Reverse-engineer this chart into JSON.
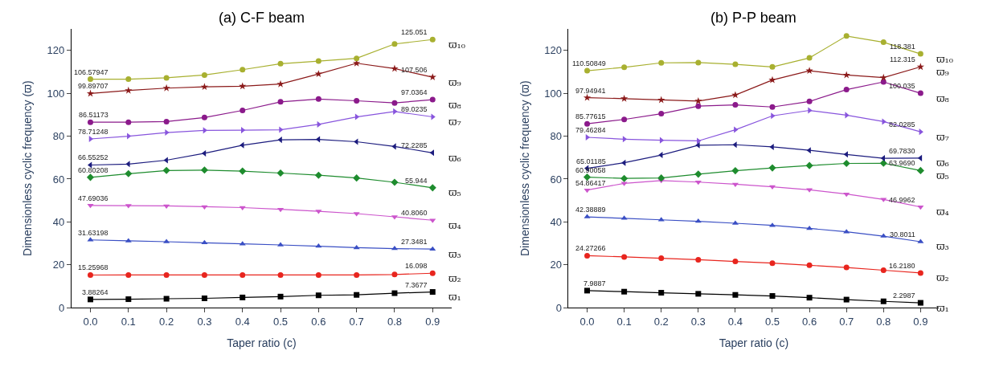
{
  "chart_data": [
    {
      "type": "line",
      "title": "(a) C-F beam",
      "xlabel": "Taper ratio (c)",
      "ylabel": "Dimensionless cyclic frequency (ϖ)",
      "x": [
        0.0,
        0.1,
        0.2,
        0.3,
        0.4,
        0.5,
        0.6,
        0.7,
        0.8,
        0.9
      ],
      "xlim": [
        -0.05,
        0.95
      ],
      "xticks": [
        {
          "value": 0,
          "label": "0.0"
        },
        0.1,
        0.2,
        0.3,
        0.4,
        0.5,
        0.6,
        0.7,
        0.8,
        0.9
      ],
      "ylim": [
        0,
        130
      ],
      "yticks": [
        0,
        20,
        40,
        60,
        80,
        100,
        120
      ],
      "legend": false,
      "series": [
        {
          "name": "ϖ₁",
          "color": "#000000",
          "marker": "square",
          "values": [
            3.88264,
            4.0,
            4.2,
            4.4,
            4.8,
            5.2,
            5.8,
            6.0,
            6.8,
            7.3677
          ],
          "value_labels": [
            "3.88264",
            null,
            null,
            null,
            null,
            null,
            null,
            null,
            null,
            "7.3677"
          ]
        },
        {
          "name": "ϖ₂",
          "color": "#e8251e",
          "marker": "circle",
          "values": [
            15.25968,
            15.3,
            15.3,
            15.3,
            15.3,
            15.3,
            15.3,
            15.3,
            15.5,
            16.098
          ],
          "value_labels": [
            "15.25968",
            null,
            null,
            null,
            null,
            null,
            null,
            null,
            null,
            "16.098"
          ]
        },
        {
          "name": "ϖ₃",
          "color": "#3a4fc4",
          "marker": "triangle",
          "values": [
            31.63198,
            31.2,
            30.8,
            30.3,
            29.8,
            29.3,
            28.7,
            28.0,
            27.6,
            27.3481
          ],
          "value_labels": [
            "31.63198",
            null,
            null,
            null,
            null,
            null,
            null,
            null,
            null,
            "27.3481"
          ]
        },
        {
          "name": "ϖ₄",
          "color": "#cc55cc",
          "marker": "triangle-down",
          "values": [
            47.69036,
            47.6,
            47.5,
            47.1,
            46.7,
            45.9,
            45.0,
            43.9,
            42.4,
            40.806
          ],
          "value_labels": [
            "47.69036",
            null,
            null,
            null,
            null,
            null,
            null,
            null,
            null,
            "40.8060"
          ]
        },
        {
          "name": "ϖ₅",
          "color": "#1e8c2e",
          "marker": "diamond",
          "values": [
            60.80208,
            62.5,
            64.0,
            64.2,
            63.7,
            62.8,
            61.8,
            60.5,
            58.5,
            55.944
          ],
          "value_labels": [
            "60.80208",
            null,
            null,
            null,
            null,
            null,
            null,
            null,
            null,
            "55.944"
          ]
        },
        {
          "name": "ϖ₆",
          "color": "#1c1c7e",
          "marker": "triangle-left",
          "values": [
            66.55252,
            67.0,
            68.8,
            72.0,
            75.8,
            78.3,
            78.5,
            77.4,
            75.2,
            72.2285
          ],
          "value_labels": [
            "66.55252",
            null,
            null,
            null,
            null,
            null,
            null,
            null,
            null,
            "72.2285"
          ]
        },
        {
          "name": "ϖ₇",
          "color": "#8855dd",
          "marker": "triangle-right",
          "values": [
            78.71248,
            80.0,
            81.7,
            82.7,
            82.8,
            83.0,
            85.5,
            89.0,
            91.5,
            89.0235
          ],
          "value_labels": [
            "78.71248",
            null,
            null,
            null,
            null,
            null,
            null,
            null,
            null,
            "89.0235"
          ]
        },
        {
          "name": "ϖ₈",
          "color": "#8b1a8b",
          "marker": "circle",
          "values": [
            86.51173,
            86.5,
            86.8,
            88.7,
            92.0,
            96.0,
            97.3,
            96.5,
            95.5,
            97.0364
          ],
          "value_labels": [
            "86.51173",
            null,
            null,
            null,
            null,
            null,
            null,
            null,
            null,
            "97.0364"
          ]
        },
        {
          "name": "ϖ₉",
          "color": "#8b1a1a",
          "marker": "star",
          "values": [
            99.89707,
            101.3,
            102.4,
            103.0,
            103.3,
            104.3,
            109.0,
            114.0,
            111.5,
            107.506
          ],
          "value_labels": [
            "99.89707",
            null,
            null,
            null,
            null,
            null,
            null,
            null,
            null,
            "107.506"
          ]
        },
        {
          "name": "ϖ₁₀",
          "color": "#a8b030",
          "marker": "circle",
          "values": [
            106.57947,
            106.6,
            107.2,
            108.5,
            111.0,
            113.8,
            115.0,
            116.3,
            123.0,
            125.051
          ],
          "value_labels": [
            "106.57947",
            null,
            null,
            null,
            null,
            null,
            null,
            null,
            null,
            "125.051"
          ]
        }
      ]
    },
    {
      "type": "line",
      "title": "(b) P-P beam",
      "xlabel": "Taper ratio (c)",
      "ylabel": "Dimensionless cyclic frequency (ϖ)",
      "x": [
        0.0,
        0.1,
        0.2,
        0.3,
        0.4,
        0.5,
        0.6,
        0.7,
        0.8,
        0.9
      ],
      "xlim": [
        -0.05,
        0.95
      ],
      "xticks": [
        {
          "value": 0,
          "label": "0.0"
        },
        0.1,
        0.2,
        0.3,
        0.4,
        0.5,
        0.6,
        0.7,
        0.8,
        0.9
      ],
      "ylim": [
        0,
        130
      ],
      "yticks": [
        0,
        20,
        40,
        60,
        80,
        100,
        120
      ],
      "legend": false,
      "series": [
        {
          "name": "ϖ₁",
          "color": "#000000",
          "marker": "square",
          "values": [
            7.9887,
            7.5,
            7.0,
            6.5,
            6.0,
            5.5,
            4.7,
            3.8,
            3.0,
            2.2987
          ],
          "value_labels": [
            "7.9887",
            null,
            null,
            null,
            null,
            null,
            null,
            null,
            null,
            "2.2987"
          ]
        },
        {
          "name": "ϖ₂",
          "color": "#e8251e",
          "marker": "circle",
          "values": [
            24.27266,
            23.7,
            23.1,
            22.4,
            21.6,
            20.8,
            19.8,
            18.8,
            17.5,
            16.218
          ],
          "value_labels": [
            "24.27266",
            null,
            null,
            null,
            null,
            null,
            null,
            null,
            null,
            "16.2180"
          ]
        },
        {
          "name": "ϖ₃",
          "color": "#3a4fc4",
          "marker": "triangle",
          "values": [
            42.38889,
            41.7,
            41.0,
            40.3,
            39.4,
            38.4,
            37.0,
            35.4,
            33.4,
            30.8011
          ],
          "value_labels": [
            "42.38889",
            null,
            null,
            null,
            null,
            null,
            null,
            null,
            null,
            "30.8011"
          ]
        },
        {
          "name": "ϖ₄",
          "color": "#cc55cc",
          "marker": "triangle-down",
          "values": [
            54.86417,
            58.0,
            59.3,
            58.6,
            57.6,
            56.4,
            55.0,
            53.0,
            50.5,
            46.9962
          ],
          "value_labels": [
            "54.86417",
            null,
            null,
            null,
            null,
            null,
            null,
            null,
            null,
            "46.9962"
          ]
        },
        {
          "name": "ϖ₅",
          "color": "#1e8c2e",
          "marker": "diamond",
          "values": [
            60.90058,
            60.3,
            60.5,
            62.3,
            63.9,
            65.2,
            66.3,
            67.3,
            67.4,
            63.969
          ],
          "value_labels": [
            "60.90058",
            null,
            null,
            null,
            null,
            null,
            null,
            null,
            null,
            "63.9690"
          ]
        },
        {
          "name": "ϖ₆",
          "color": "#1c1c7e",
          "marker": "triangle-left",
          "values": [
            65.01185,
            67.6,
            71.2,
            75.8,
            76.0,
            75.0,
            73.4,
            71.5,
            69.7,
            69.783
          ],
          "value_labels": [
            "65.01185",
            null,
            null,
            null,
            null,
            null,
            null,
            null,
            null,
            "69.7830"
          ]
        },
        {
          "name": "ϖ₇",
          "color": "#8855dd",
          "marker": "triangle-right",
          "values": [
            79.46284,
            78.6,
            78.1,
            77.8,
            83.0,
            89.5,
            92.0,
            89.8,
            86.8,
            82.0285
          ],
          "value_labels": [
            "79.46284",
            null,
            null,
            null,
            null,
            null,
            null,
            null,
            null,
            "82.0285"
          ]
        },
        {
          "name": "ϖ₈",
          "color": "#8b1a8b",
          "marker": "circle",
          "values": [
            85.77615,
            87.8,
            90.5,
            94.0,
            94.6,
            93.6,
            96.2,
            101.7,
            105.3,
            100.035
          ],
          "value_labels": [
            "85.77615",
            null,
            null,
            null,
            null,
            null,
            null,
            null,
            null,
            "100.035"
          ]
        },
        {
          "name": "ϖ₉",
          "color": "#8b1a1a",
          "marker": "star",
          "values": [
            97.94941,
            97.5,
            96.9,
            96.4,
            99.2,
            106.2,
            110.5,
            108.5,
            107.3,
            112.315
          ],
          "value_labels": [
            "97.94941",
            null,
            null,
            null,
            null,
            null,
            null,
            null,
            null,
            "112.315"
          ]
        },
        {
          "name": "ϖ₁₀",
          "color": "#a8b030",
          "marker": "circle",
          "values": [
            110.50849,
            112.1,
            114.2,
            114.3,
            113.5,
            112.3,
            116.5,
            126.7,
            123.8,
            118.381
          ],
          "value_labels": [
            "110.50849",
            null,
            null,
            null,
            null,
            null,
            null,
            null,
            null,
            "118.381"
          ]
        }
      ]
    }
  ]
}
